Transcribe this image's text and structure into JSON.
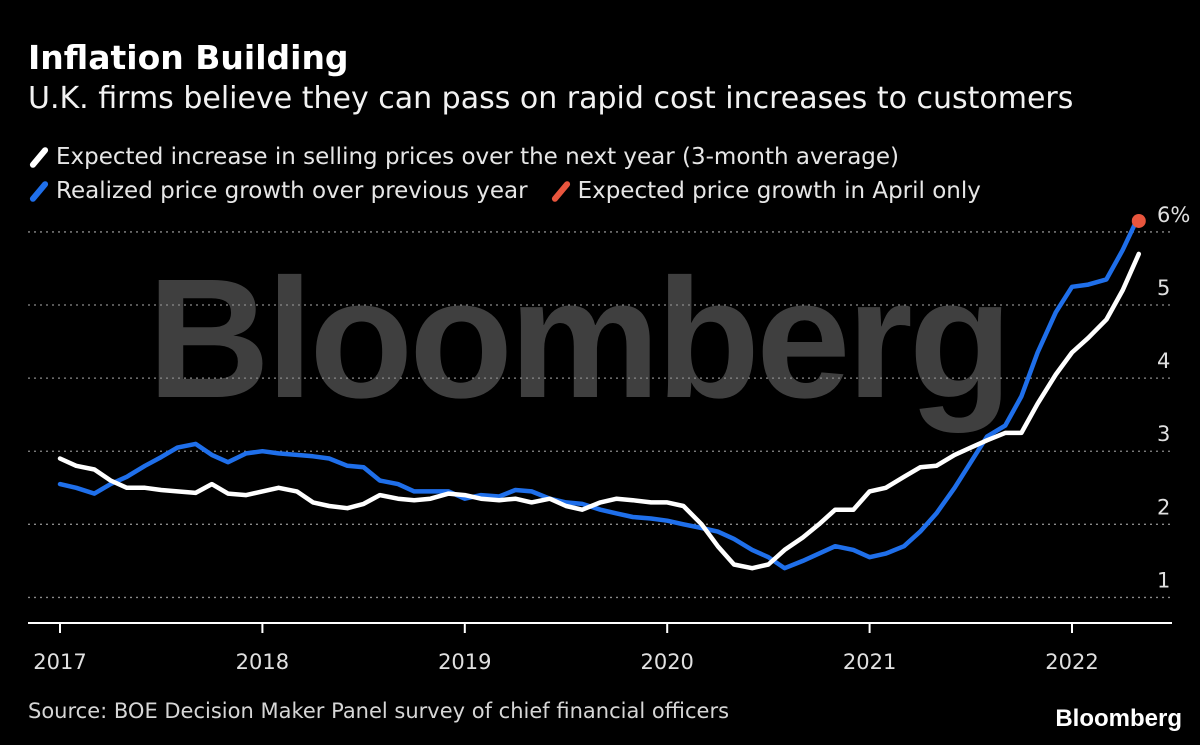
{
  "header": {
    "title": "Inflation Building",
    "subtitle": "U.K. firms believe they can pass on rapid cost increases to customers"
  },
  "legend": {
    "expected": "Expected increase in selling prices over the next year (3-month average)",
    "realized": "Realized price growth over previous year",
    "april": "Expected price growth in April only"
  },
  "footer": {
    "source": "Source: BOE Decision Maker Panel survey of chief financial officers",
    "brand": "Bloomberg"
  },
  "watermark": "Bloomberg",
  "colors": {
    "background": "#000000",
    "expected": "#ffffff",
    "realized": "#1f6fea",
    "april": "#e8553d",
    "grid": "#8a8a8a"
  },
  "chart_data": {
    "type": "line",
    "title": "Inflation Building",
    "subtitle": "U.K. firms believe they can pass on rapid cost increases to customers",
    "xlabel": "",
    "ylabel": "",
    "x_ticks": [
      "2017",
      "2018",
      "2019",
      "2020",
      "2021",
      "2022"
    ],
    "y_ticks": [
      {
        "value": 1,
        "label": "1"
      },
      {
        "value": 2,
        "label": "2"
      },
      {
        "value": 3,
        "label": "3"
      },
      {
        "value": 4,
        "label": "4"
      },
      {
        "value": 5,
        "label": "5"
      },
      {
        "value": 6,
        "label": "6%"
      }
    ],
    "ylim": [
      0.65,
      6.3
    ],
    "xlim": [
      2017.0,
      2022.35
    ],
    "grid": "horizontal dotted",
    "legend_position": "top",
    "series": [
      {
        "name": "Expected increase in selling prices over the next year (3-month average)",
        "color": "#ffffff",
        "points": [
          [
            2017.0,
            2.9
          ],
          [
            2017.08,
            2.8
          ],
          [
            2017.17,
            2.75
          ],
          [
            2017.25,
            2.6
          ],
          [
            2017.33,
            2.5
          ],
          [
            2017.42,
            2.5
          ],
          [
            2017.5,
            2.47
          ],
          [
            2017.58,
            2.45
          ],
          [
            2017.67,
            2.43
          ],
          [
            2017.75,
            2.55
          ],
          [
            2017.83,
            2.42
          ],
          [
            2017.92,
            2.4
          ],
          [
            2018.0,
            2.45
          ],
          [
            2018.08,
            2.5
          ],
          [
            2018.17,
            2.45
          ],
          [
            2018.25,
            2.3
          ],
          [
            2018.33,
            2.25
          ],
          [
            2018.42,
            2.22
          ],
          [
            2018.5,
            2.28
          ],
          [
            2018.58,
            2.4
          ],
          [
            2018.67,
            2.35
          ],
          [
            2018.75,
            2.33
          ],
          [
            2018.83,
            2.35
          ],
          [
            2018.92,
            2.42
          ],
          [
            2019.0,
            2.4
          ],
          [
            2019.08,
            2.35
          ],
          [
            2019.17,
            2.33
          ],
          [
            2019.25,
            2.35
          ],
          [
            2019.33,
            2.3
          ],
          [
            2019.42,
            2.35
          ],
          [
            2019.5,
            2.25
          ],
          [
            2019.58,
            2.2
          ],
          [
            2019.67,
            2.3
          ],
          [
            2019.75,
            2.35
          ],
          [
            2019.83,
            2.33
          ],
          [
            2019.92,
            2.3
          ],
          [
            2020.0,
            2.3
          ],
          [
            2020.08,
            2.25
          ],
          [
            2020.17,
            2.0
          ],
          [
            2020.25,
            1.7
          ],
          [
            2020.33,
            1.45
          ],
          [
            2020.42,
            1.4
          ],
          [
            2020.5,
            1.45
          ],
          [
            2020.58,
            1.65
          ],
          [
            2020.67,
            1.82
          ],
          [
            2020.75,
            2.0
          ],
          [
            2020.83,
            2.2
          ],
          [
            2020.92,
            2.2
          ],
          [
            2021.0,
            2.45
          ],
          [
            2021.08,
            2.5
          ],
          [
            2021.17,
            2.65
          ],
          [
            2021.25,
            2.78
          ],
          [
            2021.33,
            2.8
          ],
          [
            2021.42,
            2.95
          ],
          [
            2021.5,
            3.05
          ],
          [
            2021.58,
            3.15
          ],
          [
            2021.67,
            3.25
          ],
          [
            2021.75,
            3.25
          ],
          [
            2021.83,
            3.65
          ],
          [
            2021.92,
            4.05
          ],
          [
            2022.0,
            4.35
          ],
          [
            2022.08,
            4.55
          ],
          [
            2022.17,
            4.8
          ],
          [
            2022.25,
            5.2
          ],
          [
            2022.33,
            5.7
          ]
        ]
      },
      {
        "name": "Realized price growth over previous year",
        "color": "#1f6fea",
        "points": [
          [
            2017.0,
            2.55
          ],
          [
            2017.08,
            2.5
          ],
          [
            2017.17,
            2.42
          ],
          [
            2017.25,
            2.55
          ],
          [
            2017.33,
            2.65
          ],
          [
            2017.42,
            2.8
          ],
          [
            2017.5,
            2.92
          ],
          [
            2017.58,
            3.05
          ],
          [
            2017.67,
            3.1
          ],
          [
            2017.75,
            2.95
          ],
          [
            2017.83,
            2.85
          ],
          [
            2017.92,
            2.97
          ],
          [
            2018.0,
            3.0
          ],
          [
            2018.08,
            2.97
          ],
          [
            2018.17,
            2.95
          ],
          [
            2018.25,
            2.93
          ],
          [
            2018.33,
            2.9
          ],
          [
            2018.42,
            2.8
          ],
          [
            2018.5,
            2.78
          ],
          [
            2018.58,
            2.6
          ],
          [
            2018.67,
            2.55
          ],
          [
            2018.75,
            2.45
          ],
          [
            2018.83,
            2.45
          ],
          [
            2018.92,
            2.45
          ],
          [
            2019.0,
            2.35
          ],
          [
            2019.08,
            2.4
          ],
          [
            2019.17,
            2.38
          ],
          [
            2019.25,
            2.47
          ],
          [
            2019.33,
            2.45
          ],
          [
            2019.42,
            2.35
          ],
          [
            2019.5,
            2.3
          ],
          [
            2019.58,
            2.28
          ],
          [
            2019.67,
            2.2
          ],
          [
            2019.75,
            2.15
          ],
          [
            2019.83,
            2.1
          ],
          [
            2019.92,
            2.08
          ],
          [
            2020.0,
            2.05
          ],
          [
            2020.08,
            2.0
          ],
          [
            2020.17,
            1.95
          ],
          [
            2020.25,
            1.9
          ],
          [
            2020.33,
            1.8
          ],
          [
            2020.42,
            1.65
          ],
          [
            2020.5,
            1.55
          ],
          [
            2020.58,
            1.4
          ],
          [
            2020.67,
            1.5
          ],
          [
            2020.75,
            1.6
          ],
          [
            2020.83,
            1.7
          ],
          [
            2020.92,
            1.65
          ],
          [
            2021.0,
            1.55
          ],
          [
            2021.08,
            1.6
          ],
          [
            2021.17,
            1.7
          ],
          [
            2021.25,
            1.9
          ],
          [
            2021.33,
            2.15
          ],
          [
            2021.42,
            2.5
          ],
          [
            2021.5,
            2.85
          ],
          [
            2021.58,
            3.2
          ],
          [
            2021.67,
            3.35
          ],
          [
            2021.75,
            3.75
          ],
          [
            2021.83,
            4.35
          ],
          [
            2021.92,
            4.9
          ],
          [
            2022.0,
            5.25
          ],
          [
            2022.08,
            5.28
          ],
          [
            2022.17,
            5.35
          ],
          [
            2022.25,
            5.75
          ],
          [
            2022.31,
            6.1
          ]
        ]
      }
    ],
    "highlight_point": {
      "name": "Expected price growth in April only",
      "color": "#e8553d",
      "x": 2022.33,
      "y": 6.15
    }
  }
}
